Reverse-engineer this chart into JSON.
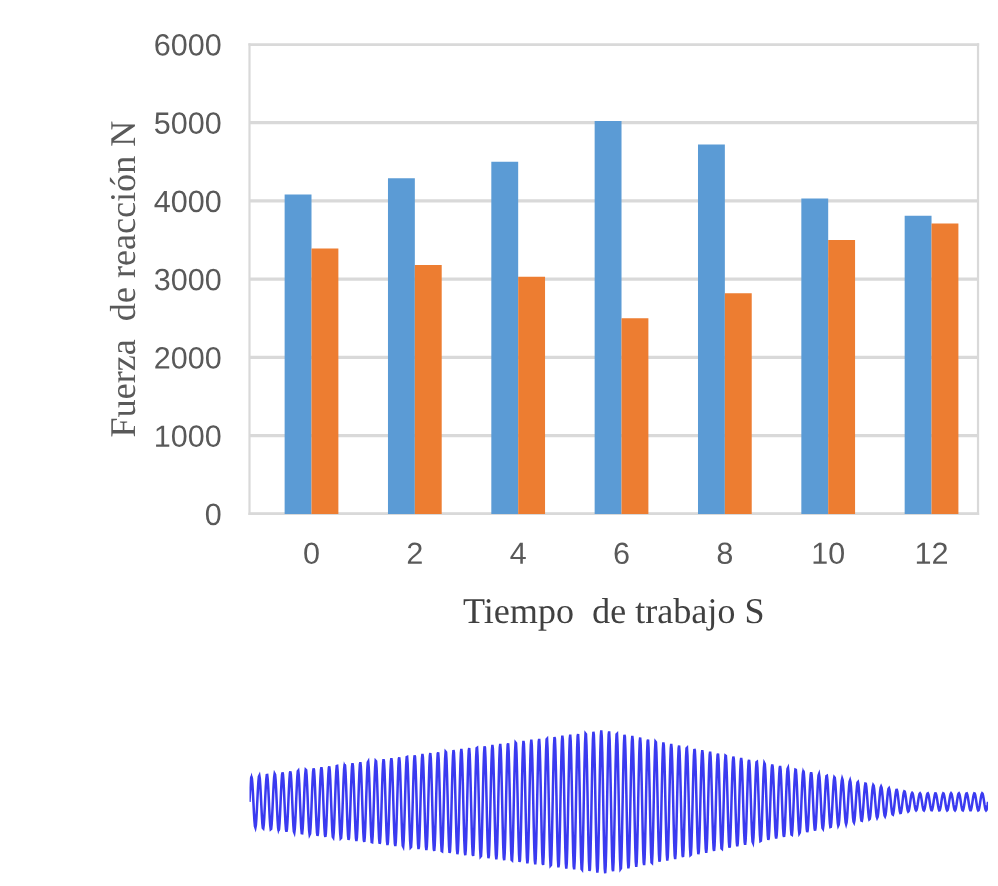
{
  "chart_data": {
    "type": "bar",
    "xlabel": "Tiempo  de trabajo S",
    "ylabel": "Fuerza  de reacción N",
    "categories": [
      "0",
      "2",
      "4",
      "6",
      "8",
      "10",
      "12"
    ],
    "series": [
      {
        "color": "#5b9bd5",
        "values": [
          4080,
          4290,
          4500,
          5020,
          4720,
          4030,
          3810
        ]
      },
      {
        "color": "#ed7d31",
        "values": [
          3390,
          3180,
          3030,
          2500,
          2820,
          3500,
          3710
        ]
      }
    ],
    "ylim": [
      0,
      6000
    ],
    "yticks": [
      0,
      1000,
      2000,
      3000,
      4000,
      5000,
      6000
    ],
    "grid": "y",
    "legend": false
  }
}
